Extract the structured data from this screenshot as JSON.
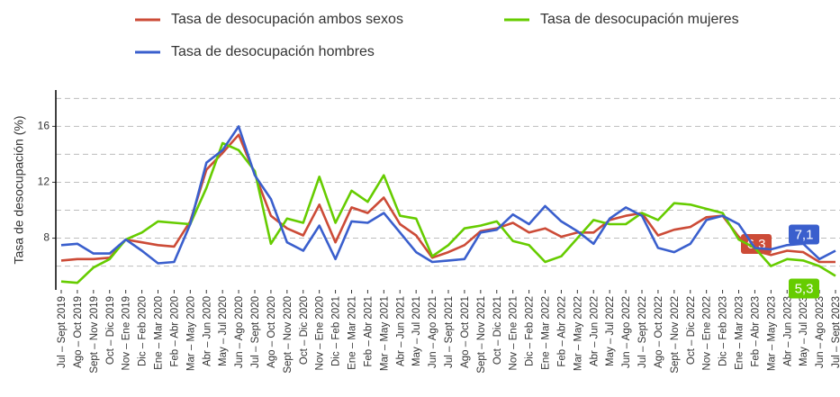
{
  "chart_data": {
    "type": "line",
    "y_label": "Tasa de desocupación (%)",
    "categories": [
      "Jul – Sept 2019",
      "Ago – Oct 2019",
      "Sept – Nov 2019",
      "Oct – Dic 2019",
      "Nov – Ene 2019",
      "Dic – Feb 2020",
      "Ene – Mar 2020",
      "Feb – Abr 2020",
      "Mar – May 2020",
      "Abr – Jun 2020",
      "May – Jul 2020",
      "Jun – Ago 2020",
      "Jul – Sept 2020",
      "Ago – Oct 2020",
      "Sept – Nov 2020",
      "Oct – Dic 2020",
      "Nov – Ene 2020",
      "Dic – Feb 2021",
      "Ene – Mar 2021",
      "Feb – Abr 2021",
      "Mar – May 2021",
      "Abr – Jun 2021",
      "May – Jul 2021",
      "Jun – Ago 2021",
      "Jul – Sept 2021",
      "Ago – Oct 2021",
      "Sept – Nov 2021",
      "Oct – Dic 2021",
      "Nov – Ene 2021",
      "Dic – Feb 2022",
      "Ene – Mar 2022",
      "Feb – Abr 2022",
      "Mar – May 2022",
      "Abr – Jun 2022",
      "May – Jul 2022",
      "Jun – Ago 2022",
      "Jul – Sept 2022",
      "Ago – Oct 2022",
      "Sept – Nov 2022",
      "Oct – Dic 2022",
      "Nov – Ene 2022",
      "Dic – Feb 2023",
      "Ene – Mar 2023",
      "Feb – Abr 2023",
      "Mar – May 2023",
      "Abr – Jun 2023",
      "May – Jul 2023",
      "Jun – Ago 2023",
      "Jul – Sept 2023"
    ],
    "series": [
      {
        "name": "Tasa de desocupación ambos sexos",
        "color": "#cc4b37",
        "values": [
          6.4,
          6.5,
          6.5,
          6.6,
          7.9,
          7.7,
          7.5,
          7.4,
          9.2,
          12.9,
          14.1,
          15.4,
          12.6,
          9.6,
          8.7,
          8.2,
          10.4,
          7.7,
          10.2,
          9.8,
          10.9,
          9.0,
          8.2,
          6.6,
          7.0,
          7.5,
          8.5,
          8.7,
          9.1,
          8.4,
          8.7,
          8.1,
          8.4,
          8.4,
          9.3,
          9.6,
          9.8,
          8.2,
          8.6,
          8.8,
          9.5,
          9.6,
          8.1,
          7.1,
          6.8,
          7.1,
          7.0,
          6.3,
          6.3
        ],
        "value_labels": [
          null,
          null,
          null,
          null,
          null,
          null,
          null,
          null,
          null,
          null,
          null,
          null,
          null,
          null,
          null,
          null,
          null,
          null,
          null,
          null,
          null,
          null,
          null,
          null,
          null,
          null,
          null,
          null,
          null,
          null,
          null,
          null,
          null,
          null,
          null,
          null,
          null,
          null,
          null,
          null,
          null,
          null,
          null,
          null,
          null,
          null,
          null,
          null,
          "6,3"
        ]
      },
      {
        "name": "Tasa de desocupación mujeres",
        "color": "#66cc00",
        "values": [
          4.9,
          4.8,
          5.9,
          6.5,
          7.9,
          8.4,
          9.2,
          9.1,
          9.0,
          11.6,
          14.8,
          14.3,
          12.8,
          7.6,
          9.4,
          9.1,
          12.4,
          9.1,
          11.4,
          10.6,
          12.5,
          9.6,
          9.4,
          6.7,
          7.5,
          8.7,
          8.9,
          9.2,
          7.8,
          7.5,
          6.3,
          6.7,
          8.0,
          9.3,
          9.0,
          9.0,
          9.8,
          9.3,
          10.5,
          10.4,
          10.1,
          9.8,
          7.9,
          7.3,
          6.0,
          6.5,
          6.4,
          6.0,
          5.3
        ],
        "value_labels": [
          null,
          null,
          null,
          null,
          null,
          null,
          null,
          null,
          null,
          null,
          null,
          null,
          null,
          null,
          null,
          null,
          null,
          null,
          null,
          null,
          null,
          null,
          null,
          null,
          null,
          null,
          null,
          null,
          null,
          null,
          null,
          null,
          null,
          null,
          null,
          null,
          null,
          null,
          null,
          null,
          null,
          null,
          null,
          null,
          null,
          null,
          null,
          null,
          "5,3"
        ]
      },
      {
        "name": "Tasa de desocupación hombres",
        "color": "#3a5fcd",
        "values": [
          7.5,
          7.6,
          6.9,
          6.9,
          7.9,
          7.1,
          6.2,
          6.3,
          9.0,
          13.4,
          14.3,
          16.0,
          12.5,
          10.8,
          7.7,
          7.1,
          8.9,
          6.5,
          9.2,
          9.1,
          9.8,
          8.4,
          7.0,
          6.3,
          6.4,
          6.5,
          8.4,
          8.6,
          9.7,
          9.0,
          10.3,
          9.2,
          8.5,
          7.6,
          9.4,
          10.2,
          9.6,
          7.3,
          7.0,
          7.6,
          9.3,
          9.6,
          9.0,
          7.3,
          7.2,
          7.5,
          7.6,
          6.5,
          7.1
        ],
        "value_labels": [
          null,
          null,
          null,
          null,
          null,
          null,
          null,
          null,
          null,
          null,
          null,
          null,
          null,
          null,
          null,
          null,
          null,
          null,
          null,
          null,
          null,
          null,
          null,
          null,
          null,
          null,
          null,
          null,
          null,
          null,
          null,
          null,
          null,
          null,
          null,
          null,
          null,
          null,
          null,
          null,
          null,
          null,
          null,
          null,
          null,
          null,
          null,
          null,
          "7,1"
        ]
      }
    ],
    "ylim": [
      4.3,
      18.6
    ],
    "yticks": [
      8,
      12,
      16
    ],
    "minor_yticks": [
      6,
      10,
      14,
      18
    ],
    "grid": true,
    "legend": "top"
  }
}
